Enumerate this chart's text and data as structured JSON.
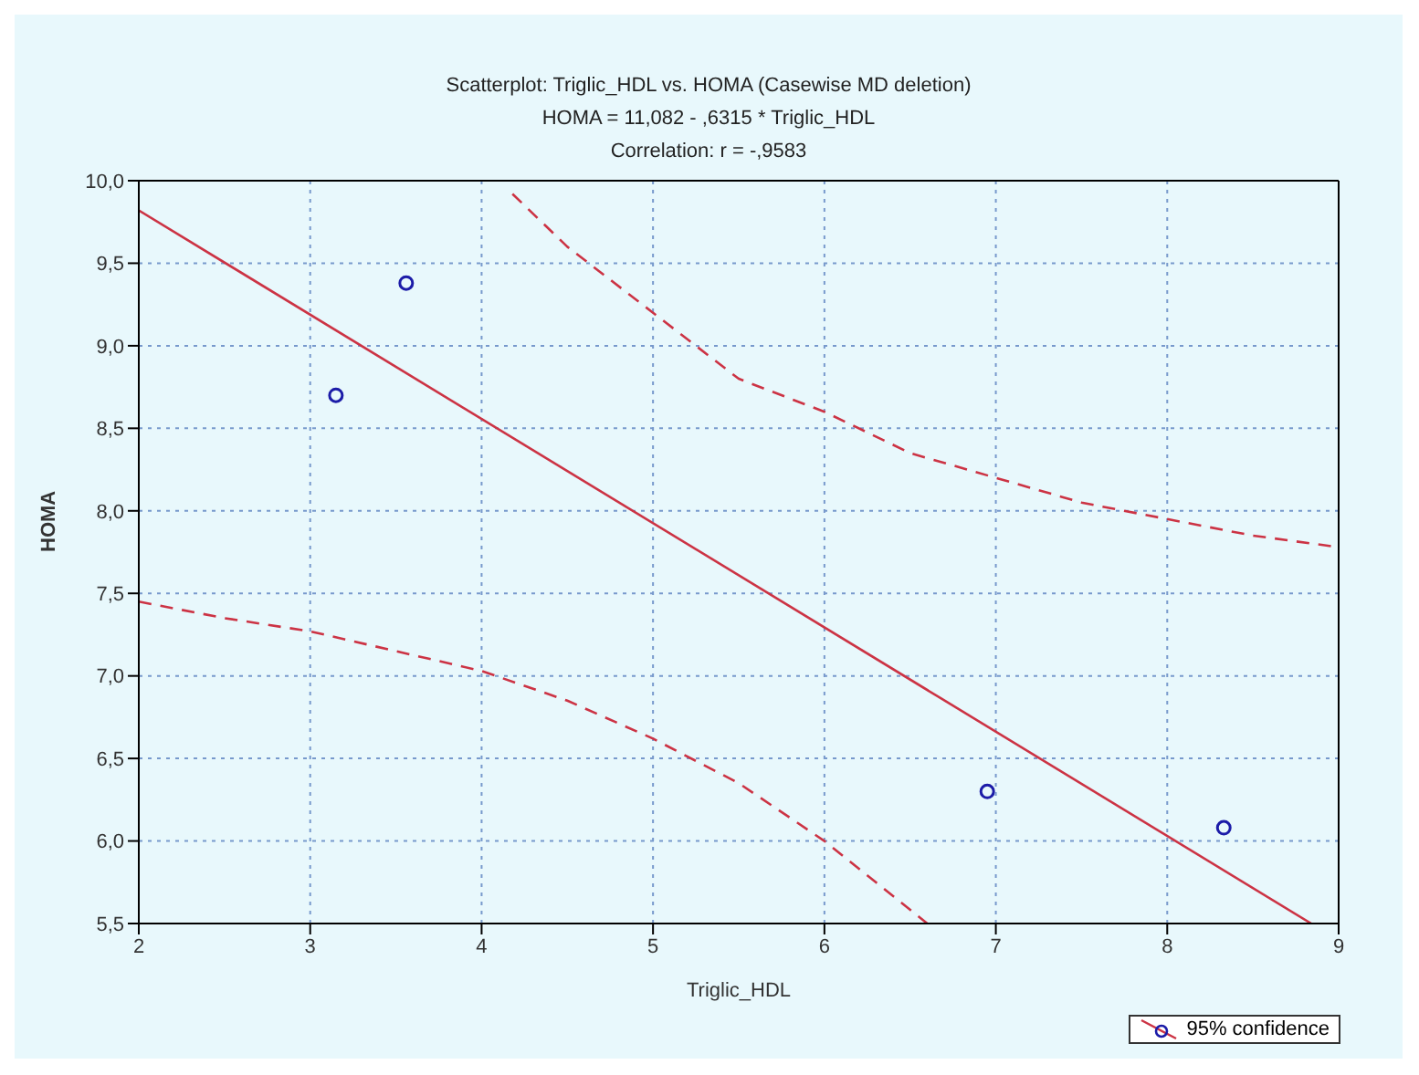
{
  "chart_data": {
    "type": "scatter",
    "title": "Scatterplot: Triglic_HDL vs. HOMA (Casewise MD deletion)",
    "subtitle": "HOMA = 11,082 - ,6315 * Triglic_HDL",
    "annotations": [
      "Correlation: r = -,9583"
    ],
    "xlabel": "Triglic_HDL",
    "ylabel": "HOMA",
    "xlim": [
      2,
      9
    ],
    "ylim": [
      5.5,
      10
    ],
    "xticks": [
      2,
      3,
      4,
      5,
      6,
      7,
      8,
      9
    ],
    "yticks": [
      {
        "value": 5.5,
        "label": "5,5"
      },
      {
        "value": 6,
        "label": "6,0"
      },
      {
        "value": 6.5,
        "label": "6,5"
      },
      {
        "value": 7,
        "label": "7,0"
      },
      {
        "value": 7.5,
        "label": "7,5"
      },
      {
        "value": 8,
        "label": "8,0"
      },
      {
        "value": 8.5,
        "label": "8,5"
      },
      {
        "value": 9,
        "label": "9,0"
      },
      {
        "value": 9.5,
        "label": "9,5"
      },
      {
        "value": 10,
        "label": "10,0"
      }
    ],
    "grid": true,
    "legend": "bottom right",
    "marker": "circle",
    "series": [
      {
        "type": "scatter",
        "color": "#1c1ca8",
        "x": [
          3.15,
          3.56,
          6.95,
          8.33
        ],
        "values": [
          8.7,
          9.38,
          6.3,
          6.08
        ]
      },
      {
        "type": "line",
        "color": "#cc3344",
        "line_style": "solid",
        "marker": "none",
        "x": [
          2,
          8.84
        ],
        "values": [
          9.82,
          5.5
        ]
      },
      {
        "type": "line",
        "name": "95% confidence",
        "color": "#cc3344",
        "line_style": "dashed",
        "marker": "none",
        "x": [
          4.18,
          4.5,
          5,
          5.5,
          6,
          6.5,
          7,
          7.5,
          8,
          8.5,
          9
        ],
        "values": [
          9.92,
          9.6,
          9.2,
          8.8,
          8.6,
          8.35,
          8.2,
          8.05,
          7.95,
          7.85,
          7.78
        ]
      },
      {
        "type": "line",
        "color": "#cc3344",
        "line_style": "dashed",
        "marker": "none",
        "x": [
          2,
          2.5,
          3,
          3.5,
          4,
          4.5,
          5,
          5.5,
          6,
          6.3,
          6.6
        ],
        "values": [
          7.45,
          7.35,
          7.27,
          7.15,
          7.03,
          6.85,
          6.62,
          6.35,
          6,
          5.75,
          5.5
        ]
      }
    ]
  }
}
